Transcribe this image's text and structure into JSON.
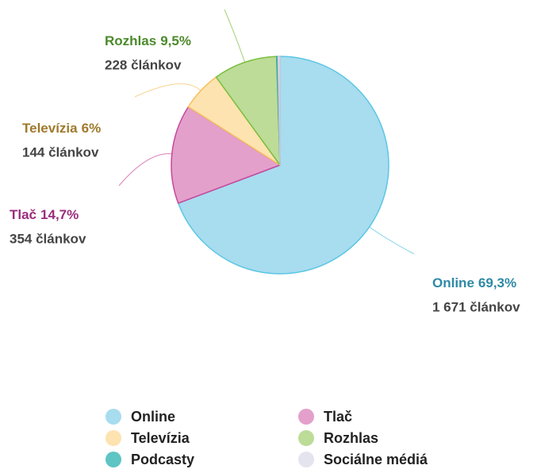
{
  "chart_data": {
    "type": "pie",
    "categories": [
      "Online",
      "Tlač",
      "Televízia",
      "Rozhlas",
      "Podcasty",
      "Sociálne médiá"
    ],
    "values": [
      69.3,
      14.7,
      6,
      9.5,
      0.2,
      0.3
    ],
    "value_labels": [
      "69,3%",
      "14,7%",
      "6%",
      "9,5%",
      null,
      null
    ],
    "counts": [
      1671,
      354,
      144,
      228,
      null,
      null
    ],
    "count_labels": [
      "1 671 článkov",
      "354 článkov",
      "144 článkov",
      "228 článkov",
      null,
      null
    ],
    "colors": [
      "#a8dcef",
      "#e3a0cb",
      "#fde3b0",
      "#bcdc98",
      "#5ec4c4",
      "#e4e4ee"
    ],
    "stroke_colors": [
      "#5bc6e3",
      "#c7489a",
      "#f5c060",
      "#7cbf3f",
      "#3aa8a8",
      "#c8c8d8"
    ],
    "label_colors": [
      "#2e8aa6",
      "#9b2c7b",
      "#a0792c",
      "#4b8a2a",
      "#2e8a8a",
      "#777777"
    ],
    "legend": "bottom"
  }
}
